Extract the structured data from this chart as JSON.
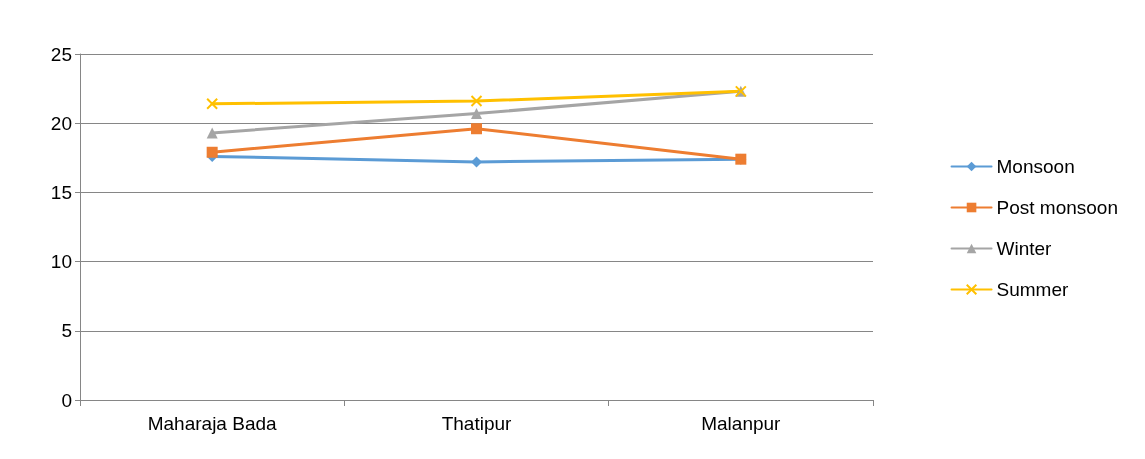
{
  "chart_data": {
    "type": "line",
    "categories": [
      "Maharaja Bada",
      "Thatipur",
      "Malanpur"
    ],
    "series": [
      {
        "name": "Monsoon",
        "color": "#5b9bd5",
        "marker": "diamond",
        "values": [
          17.6,
          17.2,
          17.4
        ]
      },
      {
        "name": "Post monsoon",
        "color": "#ed7d31",
        "marker": "square",
        "values": [
          17.9,
          19.6,
          17.4
        ]
      },
      {
        "name": "Winter",
        "color": "#a5a5a5",
        "marker": "triangle",
        "values": [
          19.3,
          20.7,
          22.3
        ]
      },
      {
        "name": "Summer",
        "color": "#ffc000",
        "marker": "cross",
        "values": [
          21.4,
          21.6,
          22.3
        ]
      }
    ],
    "ylim": [
      0,
      25
    ],
    "yticks": [
      0,
      5,
      10,
      15,
      20,
      25
    ],
    "grid": "y",
    "legend": "right",
    "line_style": "solid"
  }
}
